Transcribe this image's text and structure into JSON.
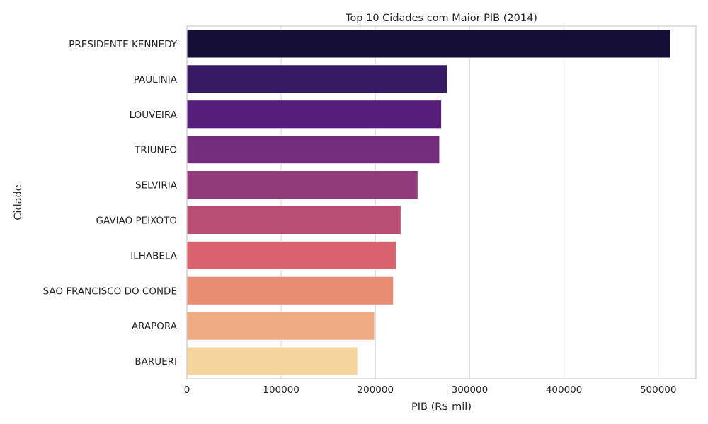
{
  "chart_data": {
    "type": "bar",
    "orientation": "horizontal",
    "title": "Top 10 Cidades com Maior PIB (2014)",
    "xlabel": "PIB (R$ mil)",
    "ylabel": "Cidade",
    "xlim": [
      0,
      540000
    ],
    "xticks": [
      0,
      100000,
      200000,
      300000,
      400000,
      500000
    ],
    "xtick_labels": [
      "0",
      "100000",
      "200000",
      "300000",
      "400000",
      "500000"
    ],
    "grid": "vertical",
    "categories": [
      "PRESIDENTE KENNEDY",
      "PAULINIA",
      "LOUVEIRA",
      "TRIUNFO",
      "SELVIRIA",
      "GAVIAO PEIXOTO",
      "ILHABELA",
      "SAO FRANCISCO DO CONDE",
      "ARAPORA",
      "BARUERI"
    ],
    "values": [
      513000,
      276000,
      270000,
      268000,
      245000,
      227000,
      222000,
      219000,
      199000,
      181000
    ],
    "colors": [
      "#150e37",
      "#371a64",
      "#561d7a",
      "#742c7d",
      "#923b7a",
      "#b84e73",
      "#d8626d",
      "#e88c72",
      "#efac82",
      "#f5d49d"
    ]
  }
}
